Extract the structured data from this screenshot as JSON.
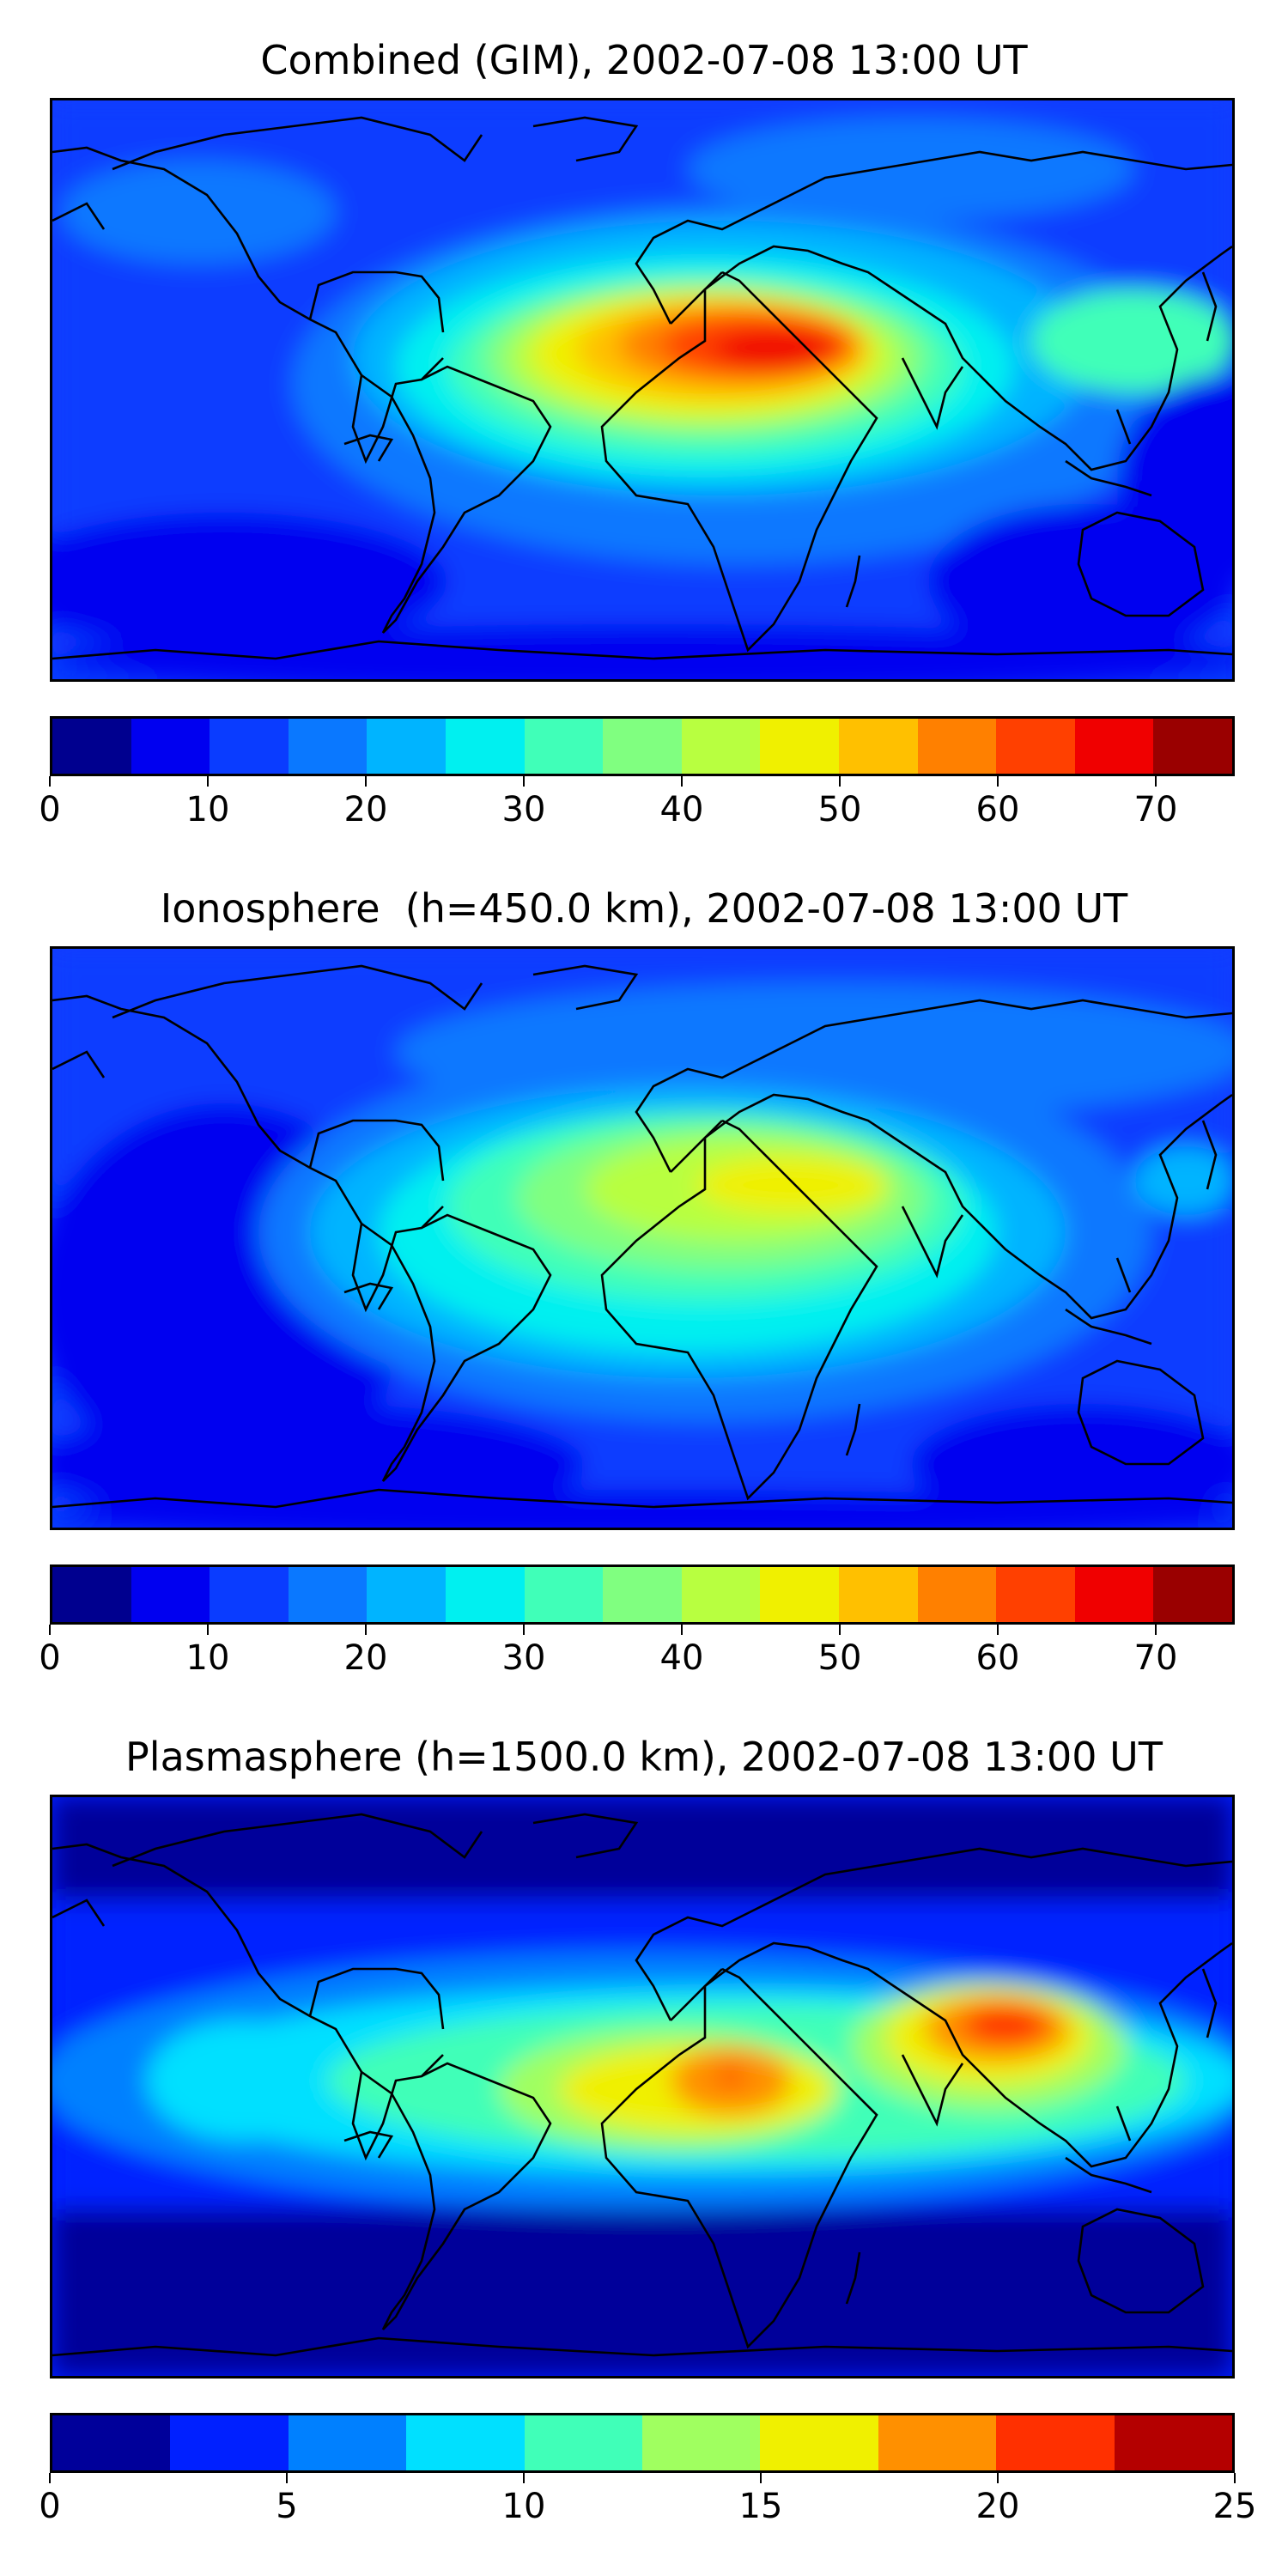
{
  "panels": [
    {
      "title": "Combined (GIM), 2002-07-08 13:00 UT",
      "colorbar": {
        "min": 0,
        "max": 75,
        "levels": 15,
        "tick_labels": [
          "0",
          "10",
          "20",
          "30",
          "40",
          "50",
          "60",
          "70"
        ],
        "tick_values": [
          0,
          10,
          20,
          30,
          40,
          50,
          60,
          70
        ]
      }
    },
    {
      "title": "Ionosphere  (h=450.0 km), 2002-07-08 13:00 UT",
      "colorbar": {
        "min": 0,
        "max": 75,
        "levels": 15,
        "tick_labels": [
          "0",
          "10",
          "20",
          "30",
          "40",
          "50",
          "60",
          "70"
        ],
        "tick_values": [
          0,
          10,
          20,
          30,
          40,
          50,
          60,
          70
        ]
      }
    },
    {
      "title": "Plasmasphere (h=1500.0 km), 2002-07-08 13:00 UT",
      "colorbar": {
        "min": 0,
        "max": 25,
        "levels": 10,
        "tick_labels": [
          "0",
          "5",
          "10",
          "15",
          "20",
          "25"
        ],
        "tick_values": [
          0,
          5,
          10,
          15,
          20,
          25
        ]
      }
    }
  ],
  "colors": {
    "jet15": [
      "#00008f",
      "#0000f0",
      "#0a3cff",
      "#0a78ff",
      "#00b4ff",
      "#00f0f0",
      "#40ffb8",
      "#80ff80",
      "#b8ff40",
      "#f0f000",
      "#ffc000",
      "#ff8000",
      "#ff4000",
      "#f00000",
      "#9a0000"
    ],
    "jet10": [
      "#00009a",
      "#0020ff",
      "#0080ff",
      "#00e0ff",
      "#40ffb8",
      "#a0ff60",
      "#f0f000",
      "#ff9000",
      "#ff3000",
      "#b40000"
    ],
    "coast": "#000000"
  }
}
